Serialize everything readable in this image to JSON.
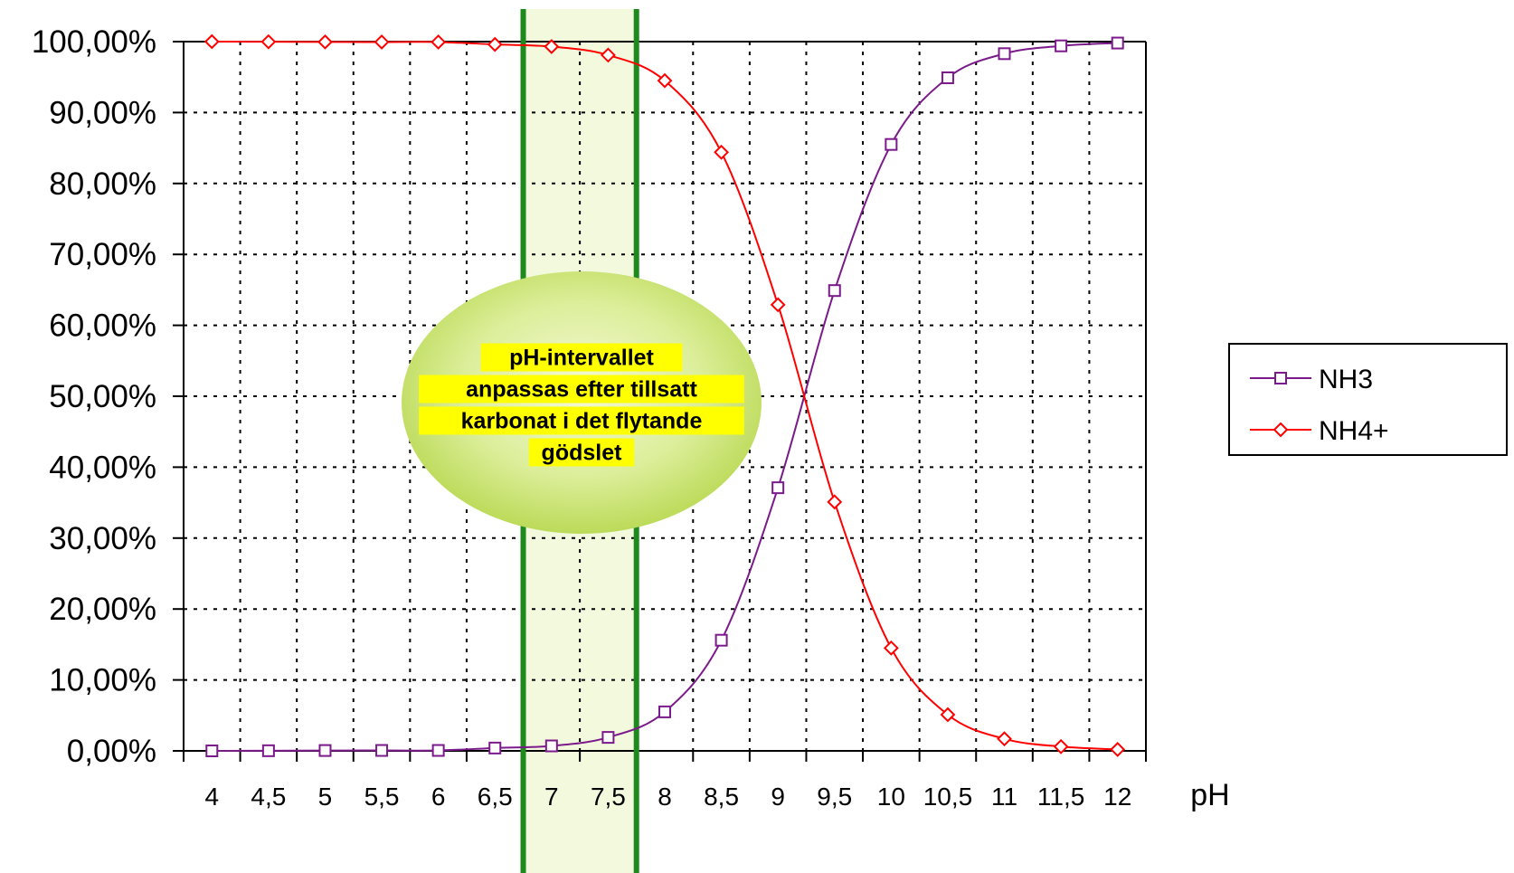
{
  "chart_data": {
    "type": "line",
    "xlabel": "pH",
    "ylabel": "",
    "x": [
      4,
      4.5,
      5,
      5.5,
      6,
      6.5,
      7,
      7.5,
      8,
      8.5,
      9,
      9.5,
      10,
      10.5,
      11,
      11.5,
      12
    ],
    "x_tick_labels": [
      "4",
      "4,5",
      "5",
      "5,5",
      "6",
      "6,5",
      "7",
      "7,5",
      "8",
      "8,5",
      "9",
      "9,5",
      "10",
      "10,5",
      "11",
      "11,5",
      "12"
    ],
    "ylim": [
      0,
      100
    ],
    "y_tick_labels": [
      "0,00%",
      "10,00%",
      "20,00%",
      "30,00%",
      "40,00%",
      "50,00%",
      "60,00%",
      "70,00%",
      "80,00%",
      "90,00%",
      "100,00%"
    ],
    "grid": true,
    "legend_position": "right",
    "series": [
      {
        "name": "NH3",
        "color": "#7b1a8a",
        "marker": "square",
        "values": [
          0.0,
          0.02,
          0.05,
          0.06,
          0.06,
          0.4,
          0.7,
          1.9,
          5.5,
          15.6,
          37.1,
          64.9,
          85.5,
          94.9,
          98.3,
          99.4,
          99.8
        ]
      },
      {
        "name": "NH4+",
        "color": "#ff0000",
        "marker": "diamond",
        "values": [
          100.0,
          99.98,
          99.95,
          99.94,
          99.94,
          99.6,
          99.3,
          98.1,
          94.5,
          84.4,
          62.9,
          35.1,
          14.5,
          5.1,
          1.7,
          0.6,
          0.2
        ]
      }
    ],
    "highlight_band": {
      "x_from": 6.75,
      "x_to": 7.75,
      "fill": "#f2f9dd",
      "border": "#1e8a1e"
    },
    "annotation": {
      "lines": [
        "pH-intervallet",
        "anpassas efter tillsatt",
        "karbonat i det flytande",
        "gödslet"
      ],
      "bubble_color": "#c5e063",
      "highlight_color": "#ffff00"
    }
  }
}
